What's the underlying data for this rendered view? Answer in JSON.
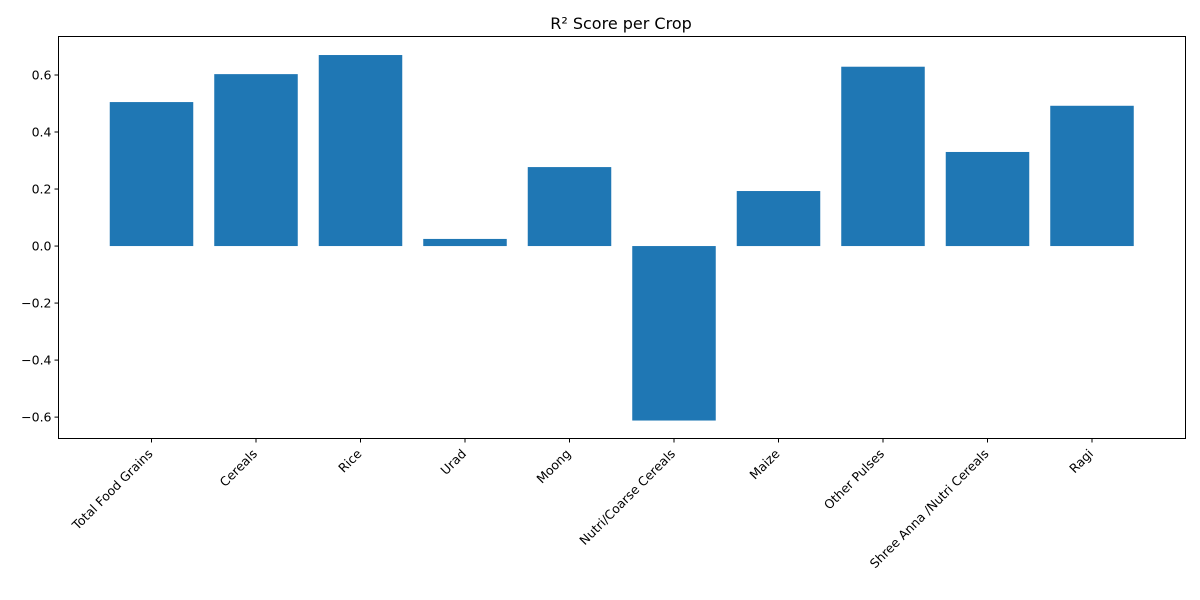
{
  "chart_data": {
    "type": "bar",
    "title": "R² Score per Crop",
    "xlabel": "",
    "ylabel": "",
    "categories": [
      "Total Food Grains",
      "Cereals",
      "Rice",
      "Urad",
      "Moong",
      "Nutri/Coarse Cereals",
      "Maize",
      "Other Pulses",
      "Shree Anna /Nutri Cereals",
      "Ragi"
    ],
    "values": [
      0.505,
      0.603,
      0.67,
      0.025,
      0.277,
      -0.612,
      0.193,
      0.629,
      0.33,
      0.492
    ],
    "ylim": [
      -0.675,
      0.735
    ],
    "yticks": [
      -0.6,
      -0.4,
      -0.2,
      0.0,
      0.2,
      0.4,
      0.6
    ],
    "ytick_labels": [
      "−0.6",
      "−0.4",
      "−0.2",
      "0.0",
      "0.2",
      "0.4",
      "0.6"
    ],
    "bar_color": "#1f77b4",
    "grid": false,
    "legend": "none"
  }
}
